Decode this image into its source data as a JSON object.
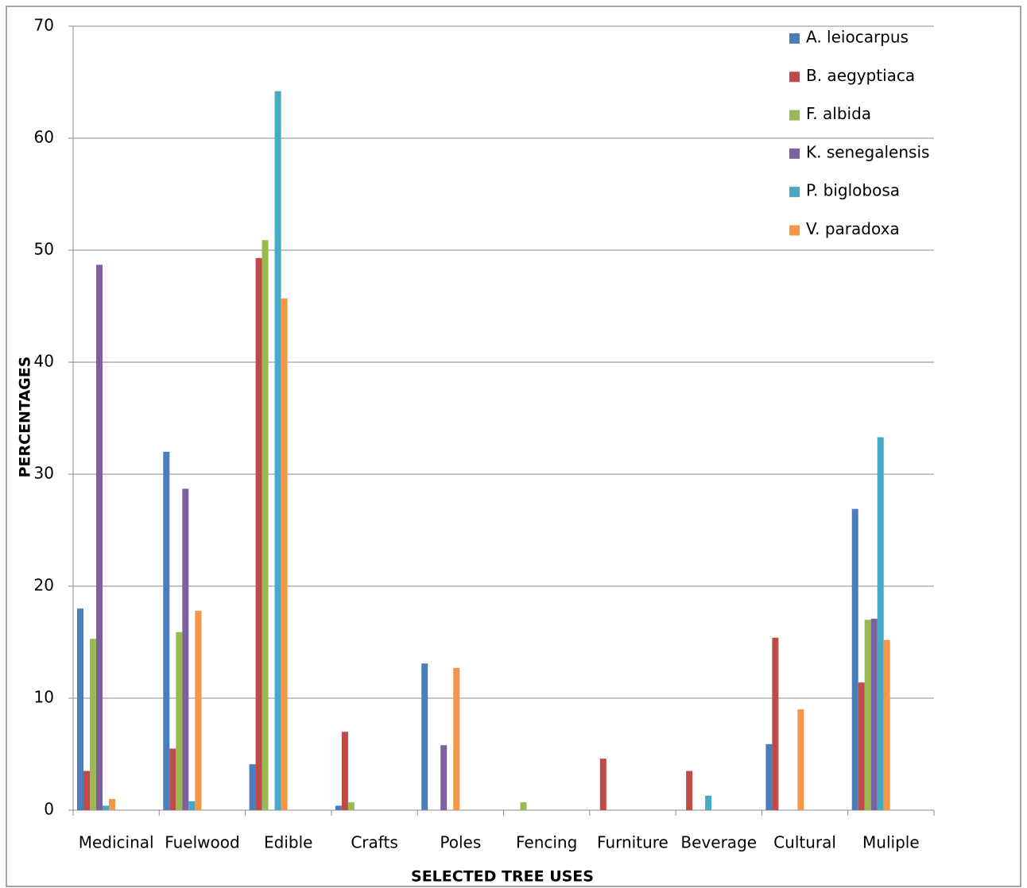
{
  "chart_data": {
    "type": "bar",
    "x_label": "SELECTED TREE USES",
    "y_label": "PERCENTAGES",
    "categories": [
      "Medicinal",
      "Fuelwood",
      "Edible",
      "Crafts",
      "Poles",
      "Fencing",
      "Furniture",
      "Beverage",
      "Cultural",
      "Muliple"
    ],
    "series": [
      {
        "name": "A. leiocarpus",
        "color": "#4a7ebb",
        "values": [
          18,
          32,
          4.1,
          0.4,
          13.1,
          0,
          0,
          0,
          5.9,
          26.9
        ]
      },
      {
        "name": "B. aegyptiaca",
        "color": "#be4b48",
        "values": [
          3.5,
          5.5,
          49.3,
          7,
          0,
          0,
          4.6,
          3.5,
          15.4,
          11.4
        ]
      },
      {
        "name": "F. albida",
        "color": "#98b954",
        "values": [
          15.3,
          15.9,
          50.9,
          0.7,
          0,
          0.7,
          0,
          0,
          0,
          17
        ]
      },
      {
        "name": "K. senegalensis",
        "color": "#7d60a0",
        "values": [
          48.7,
          28.7,
          0,
          0,
          5.8,
          0,
          0,
          0,
          0,
          17.1
        ]
      },
      {
        "name": "P. biglobosa",
        "color": "#46aac5",
        "values": [
          0.4,
          0.8,
          64.2,
          0,
          0,
          0,
          0,
          1.3,
          0,
          33.3
        ]
      },
      {
        "name": "V. paradoxa",
        "color": "#f79646",
        "values": [
          1,
          17.8,
          45.7,
          0,
          12.7,
          0,
          0,
          0,
          9,
          15.2
        ]
      }
    ],
    "ylim": [
      0,
      70
    ],
    "yticks": [
      0,
      10,
      20,
      30,
      40,
      50,
      60,
      70
    ],
    "grid": true,
    "legend": "top-right"
  }
}
